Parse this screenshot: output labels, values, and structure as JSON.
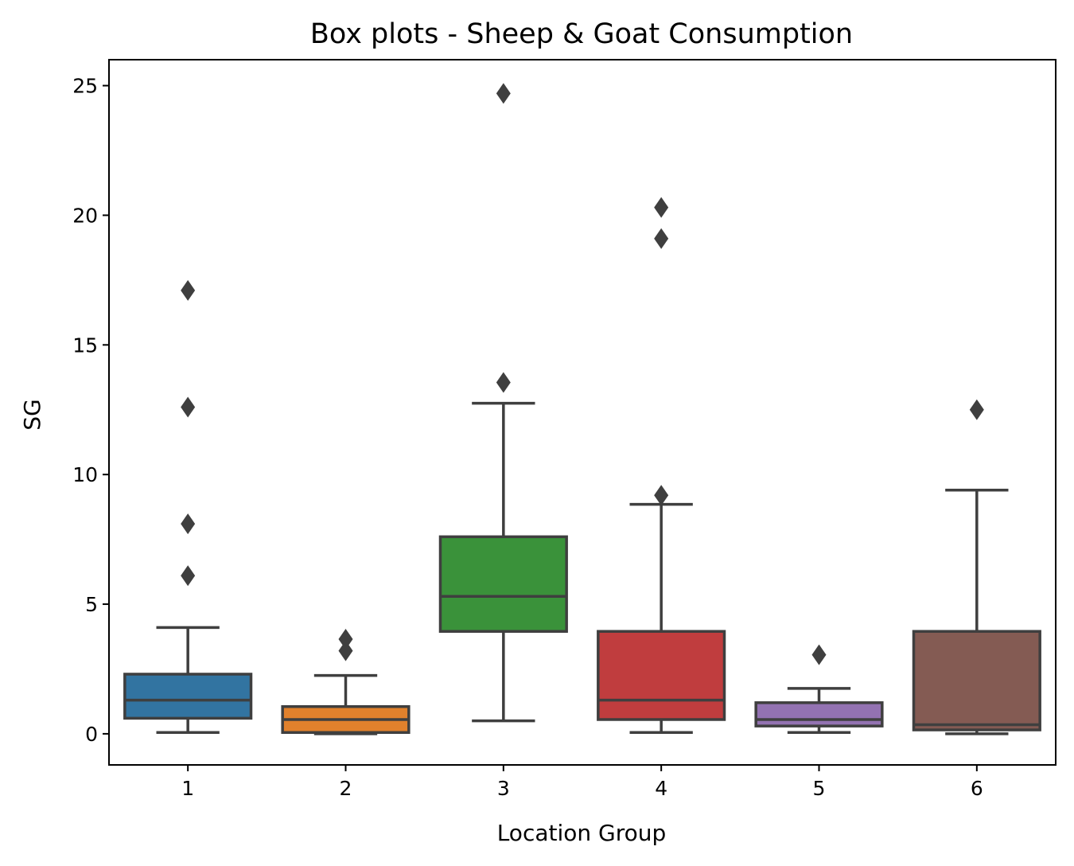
{
  "chart_data": {
    "type": "box",
    "title": "Box plots - Sheep & Goat Consumption",
    "xlabel": "Location Group",
    "ylabel": "SG",
    "ylim": [
      -1.2,
      26
    ],
    "yticks": [
      "0",
      "5",
      "10",
      "15",
      "20",
      "25"
    ],
    "ytick_values": [
      0,
      5,
      10,
      15,
      20,
      25
    ],
    "categories": [
      "1",
      "2",
      "3",
      "4",
      "5",
      "6"
    ],
    "grid": false,
    "series": [
      {
        "category": "1",
        "color": "#3274a1",
        "whisker_low": 0.05,
        "q1": 0.6,
        "median": 1.3,
        "q3": 2.3,
        "whisker_high": 4.1,
        "outliers": [
          6.1,
          8.1,
          12.6,
          17.1
        ]
      },
      {
        "category": "2",
        "color": "#e1812c",
        "whisker_low": 0.0,
        "q1": 0.05,
        "median": 0.55,
        "q3": 1.05,
        "whisker_high": 2.25,
        "outliers": [
          3.2,
          3.65
        ]
      },
      {
        "category": "3",
        "color": "#3a923a",
        "whisker_low": 0.5,
        "q1": 3.95,
        "median": 5.3,
        "q3": 7.6,
        "whisker_high": 12.75,
        "outliers": [
          13.55,
          24.7
        ]
      },
      {
        "category": "4",
        "color": "#c03d3e",
        "whisker_low": 0.05,
        "q1": 0.55,
        "median": 1.3,
        "q3": 3.95,
        "whisker_high": 8.85,
        "outliers": [
          9.2,
          19.1,
          20.3
        ]
      },
      {
        "category": "5",
        "color": "#9372b2",
        "whisker_low": 0.05,
        "q1": 0.3,
        "median": 0.55,
        "q3": 1.2,
        "whisker_high": 1.75,
        "outliers": [
          3.05
        ]
      },
      {
        "category": "6",
        "color": "#845b53",
        "whisker_low": 0.0,
        "q1": 0.15,
        "median": 0.35,
        "q3": 3.95,
        "whisker_high": 9.4,
        "outliers": [
          12.5
        ]
      }
    ],
    "line_color": "#3f3f3f"
  }
}
